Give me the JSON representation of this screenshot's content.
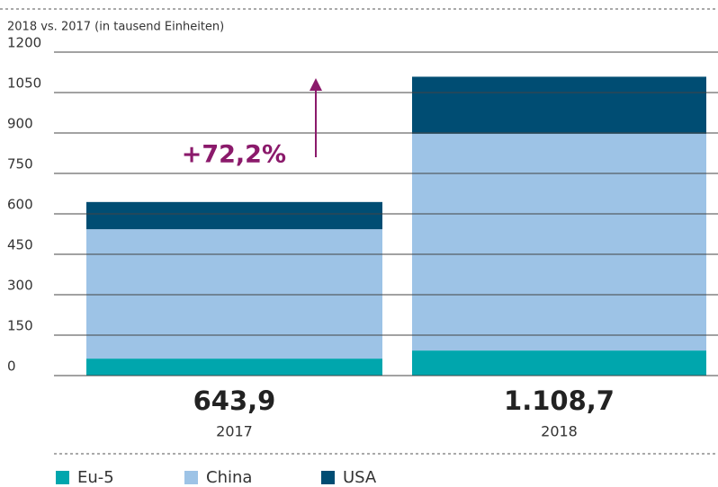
{
  "chart_data": {
    "type": "stacked-bar",
    "subtitle": "2018 vs. 2017 (in tausend Einheiten)",
    "categories": [
      "2017",
      "2018"
    ],
    "series": [
      {
        "name": "Eu-5",
        "color": "#00a6ad",
        "values": [
          63,
          93
        ]
      },
      {
        "name": "China",
        "color": "#9dc3e6",
        "values": [
          480,
          804
        ]
      },
      {
        "name": "USA",
        "color": "#004d73",
        "values": [
          100.9,
          211.7
        ]
      }
    ],
    "totals": [
      643.9,
      1108.7
    ],
    "total_labels": [
      "643,9",
      "1.108,7"
    ],
    "annotation": "+72,2%",
    "ylim": [
      0,
      1200
    ],
    "yticks": [
      0,
      150,
      300,
      450,
      600,
      750,
      900,
      1050,
      1200
    ],
    "grid": true
  }
}
